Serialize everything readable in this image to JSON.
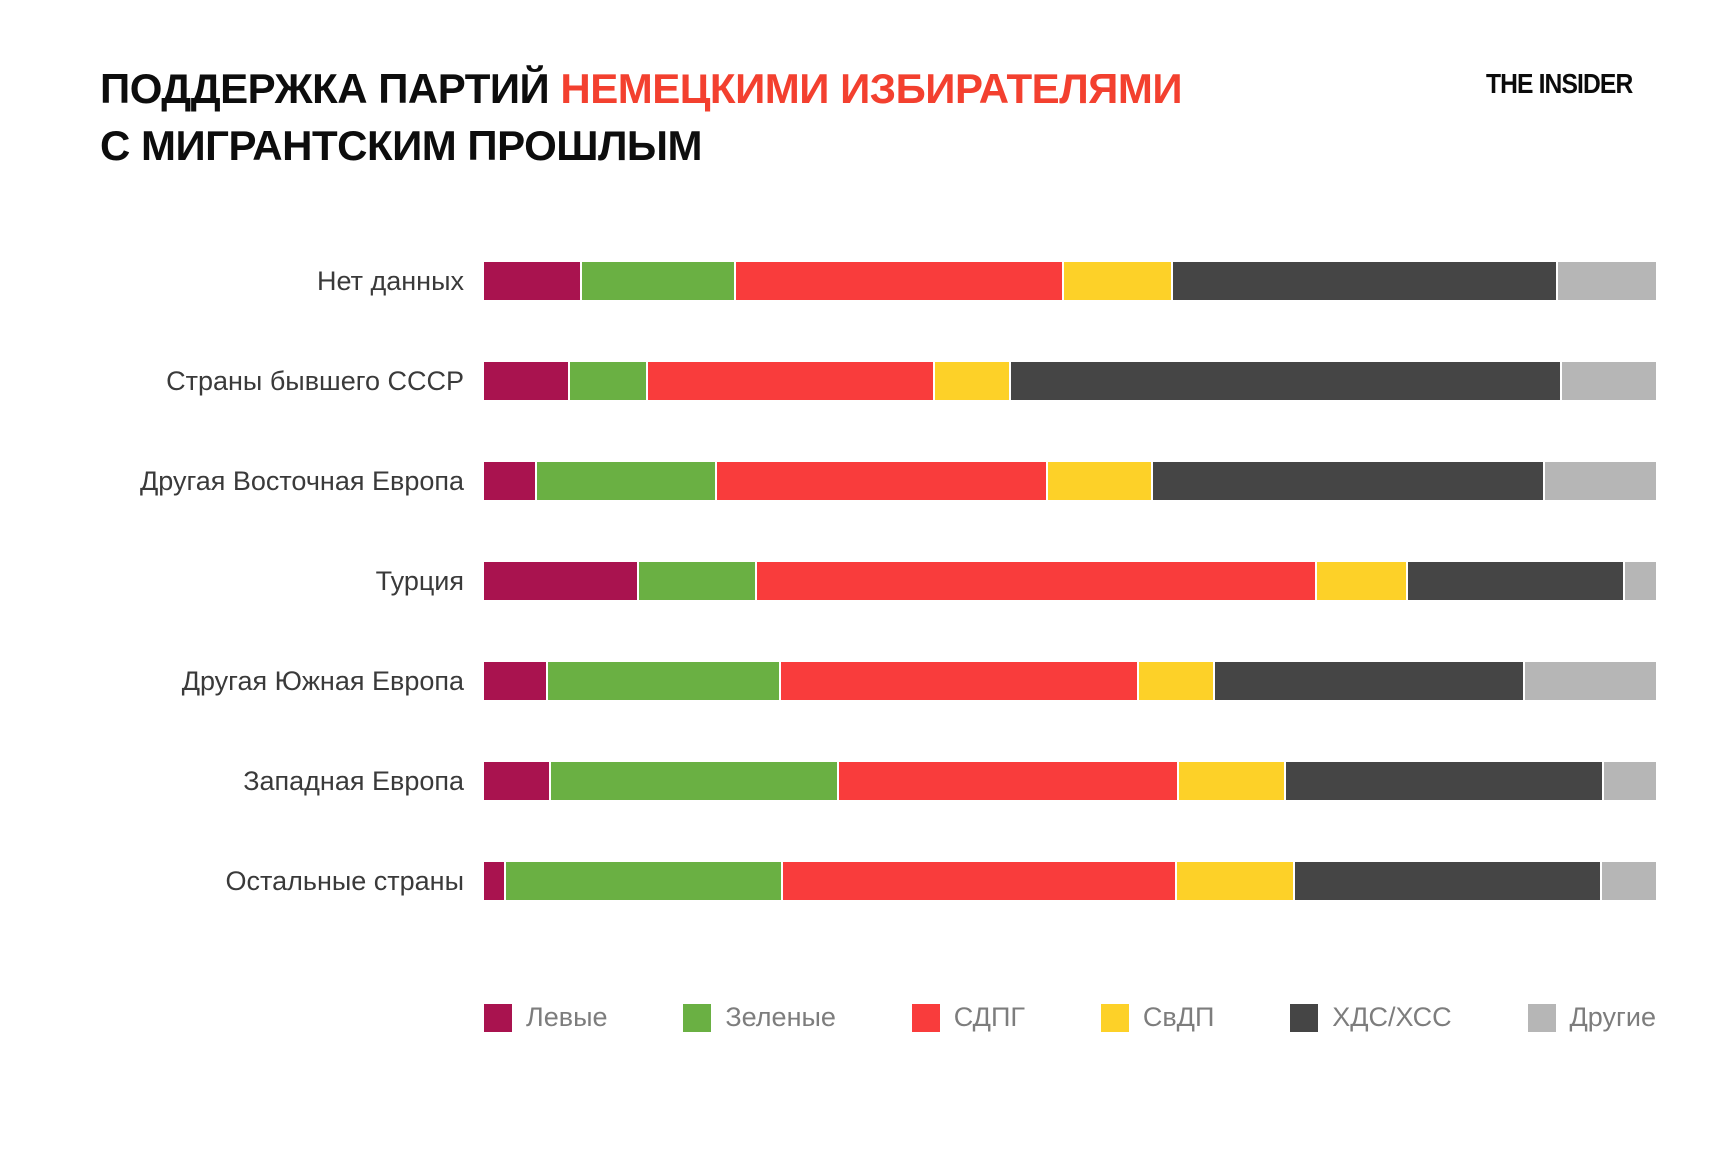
{
  "header": {
    "title_line1_black": "ПОДДЕРЖКА ПАРТИЙ",
    "title_line1_red": "НЕМЕЦКИМИ ИЗБИРАТЕЛЯМИ",
    "title_line2": "С МИГРАНТСКИМ ПРОШЛЫМ",
    "logo": "THE INSIDER"
  },
  "colors": {
    "background": "#ffffff",
    "title_black": "#0d0d0d",
    "title_red": "#f3402f",
    "row_label": "#3a3a3a",
    "legend_text": "#7d7d7d",
    "segment_gap": "#ffffff"
  },
  "chart_data": {
    "type": "bar",
    "orientation": "horizontal",
    "stacked": true,
    "unit": "percent",
    "xlim": [
      0,
      100
    ],
    "grid": false,
    "axis_labels_visible": false,
    "legend_position": "bottom",
    "title": "ПОДДЕРЖКА ПАРТИЙ НЕМЕЦКИМИ ИЗБИРАТЕЛЯМИ С МИГРАНТСКИМ ПРОШЛЫМ",
    "categories": [
      "Нет данных",
      "Страны бывшего СССР",
      "Другая Восточная Европа",
      "Турция",
      "Другая Южная Европа",
      "Западная Европа",
      "Остальные страны"
    ],
    "series": [
      {
        "name": "Левые",
        "color": "#a9134f",
        "values": [
          8.4,
          7.3,
          4.5,
          13.2,
          5.5,
          5.7,
          1.9
        ]
      },
      {
        "name": "Зеленые",
        "color": "#6ab043",
        "values": [
          13.1,
          6.7,
          15.4,
          10.1,
          19.8,
          24.6,
          23.6
        ]
      },
      {
        "name": "СДПГ",
        "color": "#f93c3c",
        "values": [
          28.0,
          24.5,
          28.2,
          47.8,
          30.6,
          29.0,
          33.6
        ]
      },
      {
        "name": "СвДП",
        "color": "#fdd128",
        "values": [
          9.3,
          6.5,
          9.0,
          7.7,
          6.5,
          9.1,
          10.1
        ]
      },
      {
        "name": "ХДС/ХСС",
        "color": "#454545",
        "values": [
          32.8,
          47.0,
          33.4,
          18.6,
          26.4,
          27.2,
          26.2
        ]
      },
      {
        "name": "Другие",
        "color": "#b6b6b6",
        "values": [
          8.4,
          8.0,
          9.5,
          2.6,
          11.2,
          4.4,
          4.6
        ]
      }
    ]
  }
}
